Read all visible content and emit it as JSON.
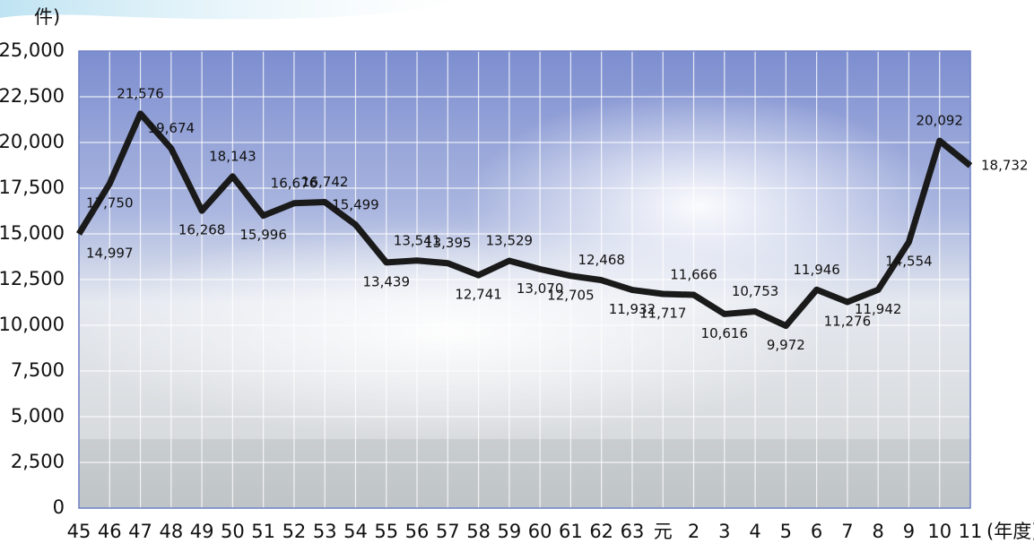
{
  "chart_data": {
    "type": "line",
    "y_label": "件)",
    "x_label": "(年度)",
    "categories": [
      "45",
      "46",
      "47",
      "48",
      "49",
      "50",
      "51",
      "52",
      "53",
      "54",
      "55",
      "56",
      "57",
      "58",
      "59",
      "60",
      "61",
      "62",
      "63",
      "元",
      "2",
      "3",
      "4",
      "5",
      "6",
      "7",
      "8",
      "9",
      "10",
      "11"
    ],
    "values": [
      14997,
      17750,
      21576,
      19674,
      16268,
      18143,
      15996,
      16676,
      16742,
      15499,
      13439,
      13541,
      13395,
      12741,
      13529,
      13070,
      12705,
      12468,
      11932,
      11717,
      11666,
      10616,
      10753,
      9972,
      11946,
      11276,
      11942,
      14554,
      20092,
      18732
    ],
    "value_labels": [
      "14,997",
      "17,750",
      "21,576",
      "19,674",
      "16,268",
      "18,143",
      "15,996",
      "16,676",
      "16,742",
      "15,499",
      "13,439",
      "13,541",
      "13,395",
      "12,741",
      "13,529",
      "13,070",
      "12,705",
      "12,468",
      "11,932",
      "11,717",
      "11,666",
      "10,616",
      "10,753",
      "9,972",
      "11,946",
      "11,276",
      "11,942",
      "14,554",
      "20,092",
      "18,732"
    ],
    "color": "#1a1a1a",
    "ylim": [
      0,
      25000
    ],
    "yticks": [
      0,
      {
        "value": 2500,
        "label": "2,500"
      },
      {
        "value": 5000,
        "label": "5,000"
      },
      {
        "value": 7500,
        "label": "7,500"
      },
      {
        "value": 10000,
        "label": "10,000"
      },
      {
        "value": 12500,
        "label": "12,500"
      },
      {
        "value": 15000,
        "label": "15,000"
      },
      {
        "value": 17500,
        "label": "17,500"
      },
      {
        "value": 20000,
        "label": "20,000"
      },
      {
        "value": 22500,
        "label": "22,500"
      },
      {
        "value": 25000,
        "label": "25,000"
      }
    ],
    "grid": true
  }
}
